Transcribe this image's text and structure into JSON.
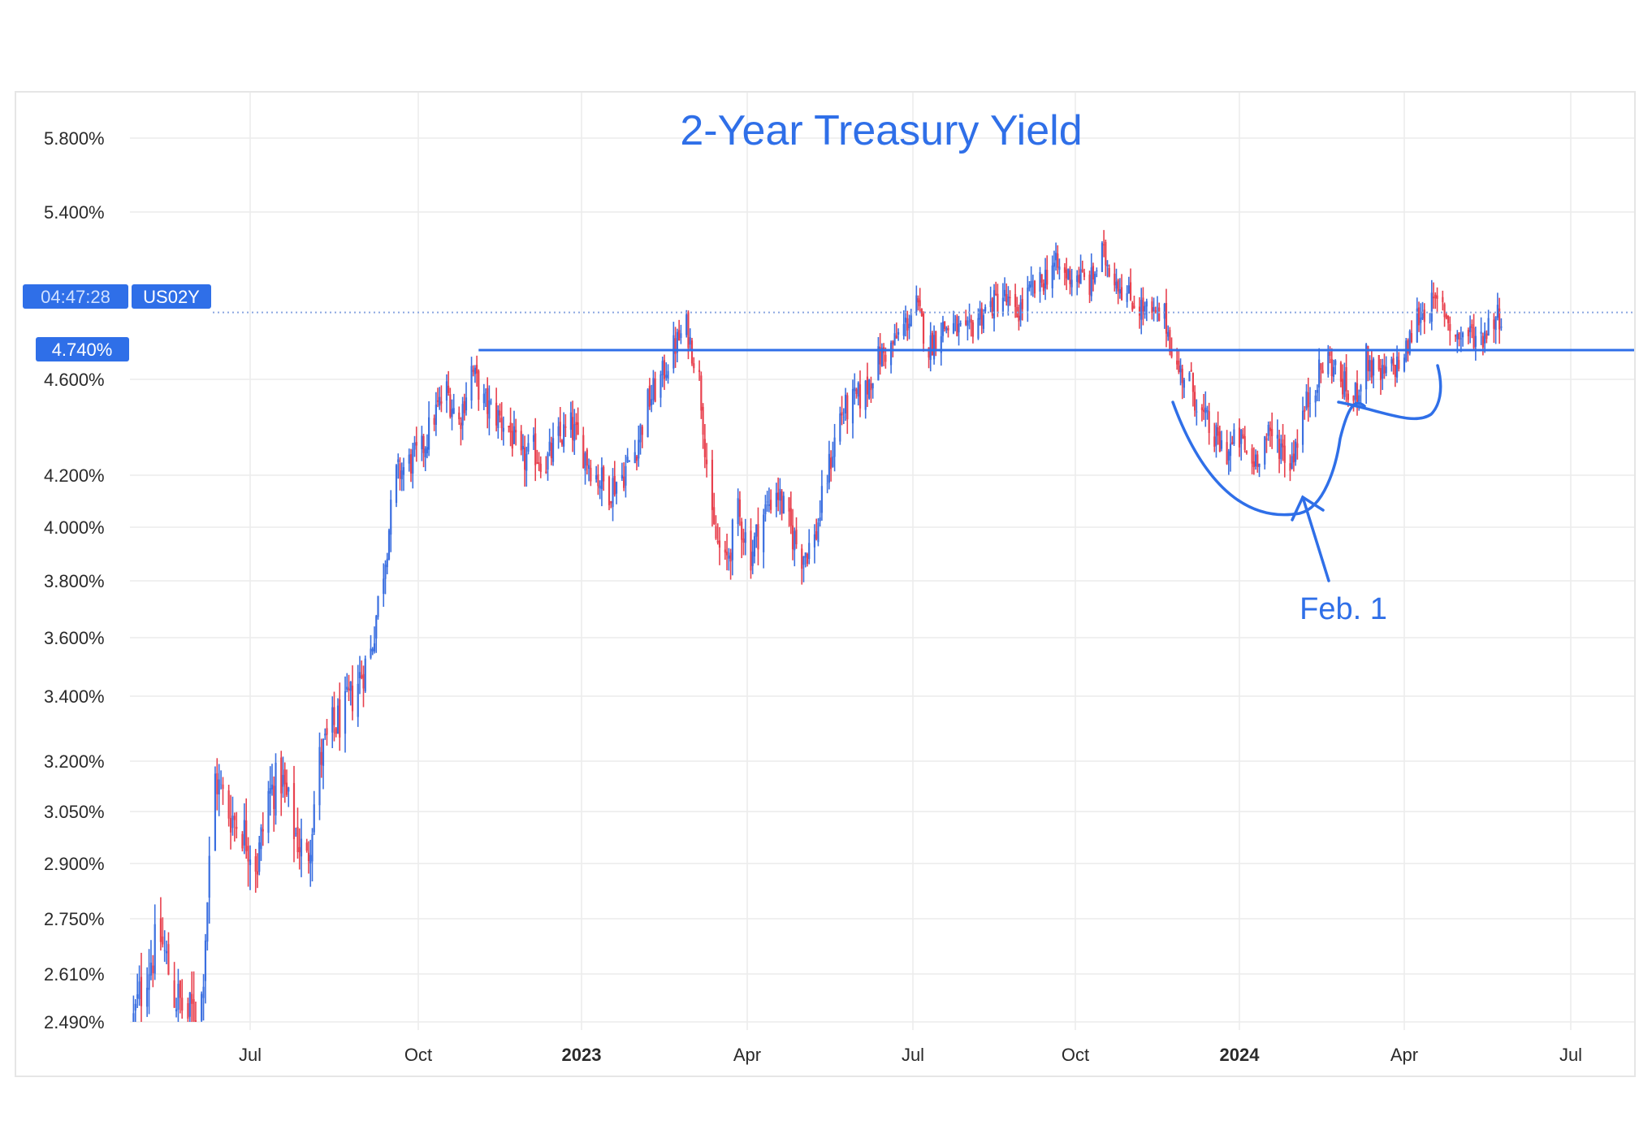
{
  "chart_data": {
    "type": "candlestick",
    "title": "2-Year Treasury Yield",
    "symbol": "US02Y",
    "countdown": "04:47:28",
    "level_label": "4.740%",
    "level_value": 4.74,
    "y_axis": {
      "ticks": [
        2.49,
        2.61,
        2.75,
        2.9,
        3.05,
        3.2,
        3.4,
        3.6,
        3.8,
        4.0,
        4.2,
        4.6,
        5.4,
        5.8
      ],
      "tick_labels": [
        "2.490%",
        "2.610%",
        "2.750%",
        "2.900%",
        "3.050%",
        "3.200%",
        "3.400%",
        "3.600%",
        "3.800%",
        "4.000%",
        "4.200%",
        "4.600%",
        "5.400%",
        "5.800%"
      ]
    },
    "x_axis": {
      "ticks": [
        {
          "label": "Jul",
          "date": "2022-07-01",
          "bold": false
        },
        {
          "label": "Oct",
          "date": "2022-10-01",
          "bold": false
        },
        {
          "label": "2023",
          "date": "2023-01-01",
          "bold": true
        },
        {
          "label": "Apr",
          "date": "2023-04-01",
          "bold": false
        },
        {
          "label": "Jul",
          "date": "2023-07-01",
          "bold": false
        },
        {
          "label": "Oct",
          "date": "2023-10-01",
          "bold": false
        },
        {
          "label": "2024",
          "date": "2024-01-01",
          "bold": true
        },
        {
          "label": "Apr",
          "date": "2024-04-01",
          "bold": false
        },
        {
          "label": "Jul",
          "date": "2024-07-01",
          "bold": false
        }
      ],
      "range": [
        "2022-05-01",
        "2024-07-31"
      ]
    },
    "grid": true,
    "colors": {
      "up": "#3b6fe0",
      "down": "#e8414e",
      "accent": "#2f6fe8",
      "grid": "#ececec"
    },
    "series": [
      {
        "values": [
          [
            "2022-05-02",
            2.49
          ],
          [
            "2022-05-09",
            2.63
          ],
          [
            "2022-05-16",
            2.7
          ],
          [
            "2022-05-23",
            2.56
          ],
          [
            "2022-05-30",
            2.5
          ],
          [
            "2022-06-06",
            2.55
          ],
          [
            "2022-06-13",
            3.15
          ],
          [
            "2022-06-20",
            3.05
          ],
          [
            "2022-06-27",
            3.0
          ],
          [
            "2022-07-05",
            2.9
          ],
          [
            "2022-07-11",
            3.1
          ],
          [
            "2022-07-18",
            3.15
          ],
          [
            "2022-07-25",
            3.0
          ],
          [
            "2022-08-01",
            2.9
          ],
          [
            "2022-08-08",
            3.2
          ],
          [
            "2022-08-15",
            3.3
          ],
          [
            "2022-08-22",
            3.35
          ],
          [
            "2022-08-29",
            3.45
          ],
          [
            "2022-09-05",
            3.55
          ],
          [
            "2022-09-12",
            3.85
          ],
          [
            "2022-09-19",
            4.2
          ],
          [
            "2022-09-26",
            4.25
          ],
          [
            "2022-10-03",
            4.3
          ],
          [
            "2022-10-10",
            4.45
          ],
          [
            "2022-10-17",
            4.55
          ],
          [
            "2022-10-24",
            4.42
          ],
          [
            "2022-10-31",
            4.65
          ],
          [
            "2022-11-07",
            4.5
          ],
          [
            "2022-11-14",
            4.45
          ],
          [
            "2022-11-21",
            4.4
          ],
          [
            "2022-11-28",
            4.25
          ],
          [
            "2022-12-05",
            4.3
          ],
          [
            "2022-12-12",
            4.25
          ],
          [
            "2022-12-19",
            4.35
          ],
          [
            "2022-12-26",
            4.4
          ],
          [
            "2023-01-02",
            4.3
          ],
          [
            "2023-01-09",
            4.2
          ],
          [
            "2023-01-16",
            4.15
          ],
          [
            "2023-01-23",
            4.2
          ],
          [
            "2023-01-30",
            4.3
          ],
          [
            "2023-02-06",
            4.5
          ],
          [
            "2023-02-13",
            4.6
          ],
          [
            "2023-02-20",
            4.75
          ],
          [
            "2023-02-27",
            4.85
          ],
          [
            "2023-03-06",
            4.6
          ],
          [
            "2023-03-13",
            4.0
          ],
          [
            "2023-03-20",
            3.85
          ],
          [
            "2023-03-27",
            4.05
          ],
          [
            "2023-04-03",
            3.9
          ],
          [
            "2023-04-10",
            4.05
          ],
          [
            "2023-04-17",
            4.15
          ],
          [
            "2023-04-24",
            4.0
          ],
          [
            "2023-05-01",
            3.9
          ],
          [
            "2023-05-08",
            3.95
          ],
          [
            "2023-05-15",
            4.2
          ],
          [
            "2023-05-22",
            4.45
          ],
          [
            "2023-05-29",
            4.5
          ],
          [
            "2023-06-05",
            4.55
          ],
          [
            "2023-06-12",
            4.7
          ],
          [
            "2023-06-19",
            4.75
          ],
          [
            "2023-06-26",
            4.85
          ],
          [
            "2023-07-03",
            4.95
          ],
          [
            "2023-07-10",
            4.75
          ],
          [
            "2023-07-17",
            4.85
          ],
          [
            "2023-07-24",
            4.85
          ],
          [
            "2023-07-31",
            4.8
          ],
          [
            "2023-08-07",
            4.9
          ],
          [
            "2023-08-14",
            4.95
          ],
          [
            "2023-08-21",
            5.0
          ],
          [
            "2023-08-28",
            4.9
          ],
          [
            "2023-09-04",
            5.0
          ],
          [
            "2023-09-11",
            5.05
          ],
          [
            "2023-09-18",
            5.15
          ],
          [
            "2023-09-25",
            5.1
          ],
          [
            "2023-10-02",
            5.1
          ],
          [
            "2023-10-09",
            5.05
          ],
          [
            "2023-10-16",
            5.2
          ],
          [
            "2023-10-23",
            5.1
          ],
          [
            "2023-10-30",
            5.0
          ],
          [
            "2023-11-06",
            4.95
          ],
          [
            "2023-11-13",
            4.9
          ],
          [
            "2023-11-20",
            4.9
          ],
          [
            "2023-11-27",
            4.65
          ],
          [
            "2023-12-04",
            4.6
          ],
          [
            "2023-12-11",
            4.45
          ],
          [
            "2023-12-18",
            4.35
          ],
          [
            "2023-12-25",
            4.3
          ],
          [
            "2024-01-01",
            4.35
          ],
          [
            "2024-01-08",
            4.25
          ],
          [
            "2024-01-15",
            4.35
          ],
          [
            "2024-01-22",
            4.35
          ],
          [
            "2024-01-29",
            4.25
          ],
          [
            "2024-02-05",
            4.45
          ],
          [
            "2024-02-12",
            4.6
          ],
          [
            "2024-02-19",
            4.7
          ],
          [
            "2024-02-26",
            4.6
          ],
          [
            "2024-03-04",
            4.5
          ],
          [
            "2024-03-11",
            4.7
          ],
          [
            "2024-03-18",
            4.6
          ],
          [
            "2024-03-25",
            4.65
          ],
          [
            "2024-04-01",
            4.7
          ],
          [
            "2024-04-08",
            4.9
          ],
          [
            "2024-04-15",
            4.95
          ],
          [
            "2024-04-22",
            4.95
          ],
          [
            "2024-04-29",
            4.8
          ],
          [
            "2024-05-06",
            4.82
          ],
          [
            "2024-05-13",
            4.8
          ],
          [
            "2024-05-20",
            4.9
          ],
          [
            "2024-05-27",
            4.92
          ]
        ]
      }
    ],
    "annotations": [
      {
        "type": "horizontal_line",
        "value": 4.74
      },
      {
        "type": "text",
        "text": "Feb. 1",
        "date": "2024-02-01"
      }
    ]
  }
}
